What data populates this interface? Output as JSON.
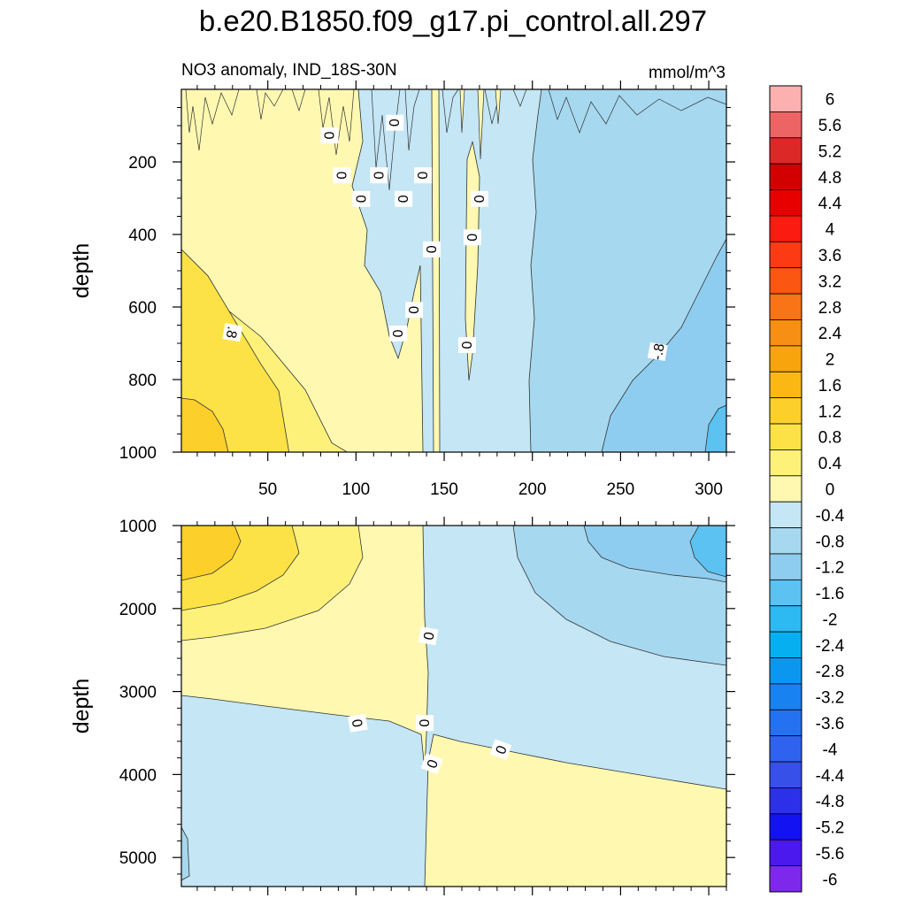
{
  "chart_data": [
    {
      "type": "heatmap",
      "title": "b.e20.B1850.f09_g17.pi_control.all.297",
      "subtitle": "NO3 anomaly, IND_18S-30N",
      "units": "mmol/m^3",
      "ylabel": "depth",
      "xlim": [
        1,
        310
      ],
      "ylim": [
        1000,
        0
      ],
      "x_ticks": [
        50,
        100,
        150,
        200,
        250,
        300
      ],
      "y_ticks": [
        200,
        400,
        600,
        800,
        1000
      ],
      "x_tick_labels": [
        "50",
        "100",
        "150",
        "200",
        "250",
        "300"
      ],
      "y_tick_labels": [
        "200",
        "400",
        "600",
        "800",
        "1000"
      ],
      "contour_labels": [
        "0",
        "0",
        "0",
        "0",
        "0",
        "0",
        "0",
        "0",
        "0",
        "0",
        "0",
        "0",
        "0",
        ".8",
        "-.8"
      ],
      "levels": [
        {
          "name": "0.8 to 1.2",
          "color": "#fde247",
          "x0": 1,
          "x1": 62,
          "y_top": 880,
          "y_bot": 1000
        },
        {
          "name": "0.4 to 0.8",
          "color": "#fdf17a",
          "x0": 1,
          "x1": 95,
          "y_top": 560,
          "y_bot": 1000
        }
      ]
    },
    {
      "type": "heatmap",
      "ylabel": "depth",
      "xlim": [
        1,
        310
      ],
      "ylim": [
        5350,
        1000
      ],
      "y_ticks": [
        1000,
        2000,
        3000,
        4000,
        5000
      ],
      "y_tick_labels": [
        "1000",
        "2000",
        "3000",
        "4000",
        "5000"
      ],
      "contour_labels": [
        "0",
        "0",
        "0",
        "0",
        "0"
      ]
    }
  ],
  "colorbar": {
    "labels": [
      "6",
      "5.6",
      "5.2",
      "4.8",
      "4.4",
      "4",
      "3.6",
      "3.2",
      "2.8",
      "2.4",
      "2",
      "1.6",
      "1.2",
      "0.8",
      "0.4",
      "0",
      "-0.4",
      "-0.8",
      "-1.2",
      "-1.6",
      "-2",
      "-2.4",
      "-2.8",
      "-3.2",
      "-3.6",
      "-4",
      "-4.4",
      "-4.8",
      "-5.2",
      "-5.6",
      "-6"
    ],
    "colors": [
      "#fdb0b0",
      "#ec6464",
      "#dd2828",
      "#d20000",
      "#e80000",
      "#fb1b10",
      "#fc3a13",
      "#fb5612",
      "#f87416",
      "#f68f14",
      "#f8a40c",
      "#fbb814",
      "#fdcf2a",
      "#fde247",
      "#fdf17a",
      "#fef8b1",
      "#c4e6f5",
      "#a6d8f0",
      "#8ecdef",
      "#5bc2f1",
      "#2db9f1",
      "#06b0f0",
      "#0b97f0",
      "#1883f0",
      "#2472f1",
      "#2f62ee",
      "#3650e8",
      "#2c30e9",
      "#1212f2",
      "#4b18ee",
      "#7e28ec"
    ]
  }
}
